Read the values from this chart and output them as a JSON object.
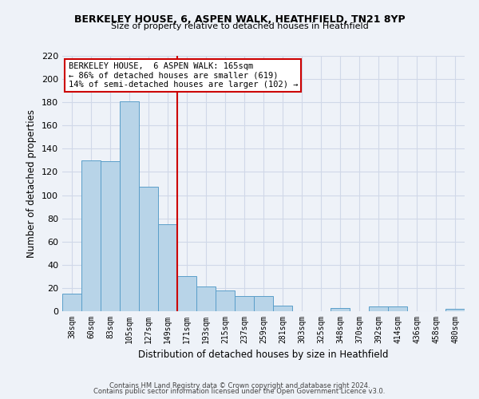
{
  "title_line1": "BERKELEY HOUSE, 6, ASPEN WALK, HEATHFIELD, TN21 8YP",
  "title_line2": "Size of property relative to detached houses in Heathfield",
  "xlabel": "Distribution of detached houses by size in Heathfield",
  "ylabel": "Number of detached properties",
  "categories": [
    "38sqm",
    "60sqm",
    "83sqm",
    "105sqm",
    "127sqm",
    "149sqm",
    "171sqm",
    "193sqm",
    "215sqm",
    "237sqm",
    "259sqm",
    "281sqm",
    "303sqm",
    "325sqm",
    "348sqm",
    "370sqm",
    "392sqm",
    "414sqm",
    "436sqm",
    "458sqm",
    "480sqm"
  ],
  "values": [
    15,
    130,
    129,
    181,
    107,
    75,
    30,
    21,
    18,
    13,
    13,
    5,
    0,
    0,
    3,
    0,
    4,
    4,
    0,
    0,
    2
  ],
  "bar_color": "#b8d4e8",
  "bar_edge_color": "#5a9ec9",
  "grid_color": "#d0d8e8",
  "vline_color": "#cc0000",
  "annotation_line1": "BERKELEY HOUSE,  6 ASPEN WALK: 165sqm",
  "annotation_line2": "← 86% of detached houses are smaller (619)",
  "annotation_line3": "14% of semi-detached houses are larger (102) →",
  "annotation_box_color": "#ffffff",
  "annotation_box_edge_color": "#cc0000",
  "ylim": [
    0,
    220
  ],
  "yticks": [
    0,
    20,
    40,
    60,
    80,
    100,
    120,
    140,
    160,
    180,
    200,
    220
  ],
  "footer_line1": "Contains HM Land Registry data © Crown copyright and database right 2024.",
  "footer_line2": "Contains public sector information licensed under the Open Government Licence v3.0.",
  "bg_color": "#eef2f8"
}
